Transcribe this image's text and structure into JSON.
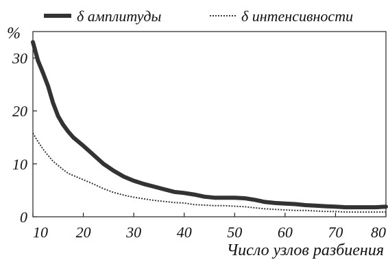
{
  "chart_data": {
    "type": "line",
    "title": "",
    "xlabel": "Число узлов разбиения",
    "ylabel": "%",
    "xlim": [
      10,
      80
    ],
    "ylim": [
      0,
      35
    ],
    "xticks": [
      10,
      20,
      30,
      40,
      50,
      60,
      70,
      80
    ],
    "yticks": [
      0,
      10,
      20,
      30
    ],
    "grid": false,
    "legend_position": "top",
    "series": [
      {
        "name": "δ амплитуды",
        "style": "thick-solid",
        "color": "#333333",
        "x": [
          10,
          11,
          12,
          13,
          14,
          15,
          16,
          17,
          18,
          20,
          22,
          24,
          26,
          28,
          30,
          32,
          34,
          36,
          38,
          40,
          42,
          44,
          46,
          48,
          50,
          52,
          54,
          56,
          58,
          60,
          62,
          64,
          66,
          68,
          70,
          72,
          74,
          76,
          78,
          80
        ],
        "values": [
          33,
          29.5,
          27.2,
          24.7,
          21.5,
          19.0,
          17.4,
          16.1,
          15.0,
          13.4,
          11.7,
          10.0,
          8.7,
          7.6,
          6.8,
          6.2,
          5.7,
          5.2,
          4.7,
          4.5,
          4.2,
          3.8,
          3.6,
          3.6,
          3.6,
          3.5,
          3.2,
          2.8,
          2.6,
          2.5,
          2.4,
          2.2,
          2.1,
          2.0,
          1.9,
          1.8,
          1.8,
          1.8,
          1.8,
          1.9
        ]
      },
      {
        "name": "δ интенсивности",
        "style": "dotted",
        "color": "#333333",
        "x": [
          10,
          11,
          12,
          13,
          14,
          15,
          16,
          17,
          18,
          20,
          22,
          24,
          26,
          28,
          30,
          32,
          34,
          36,
          38,
          40,
          42,
          44,
          46,
          48,
          50,
          52,
          54,
          56,
          58,
          60,
          62,
          64,
          66,
          68,
          70,
          72,
          74,
          76,
          78,
          80
        ],
        "values": [
          15.8,
          14.2,
          12.8,
          11.6,
          10.5,
          9.7,
          8.9,
          8.2,
          7.8,
          7.0,
          6.2,
          5.3,
          4.6,
          4.1,
          3.7,
          3.4,
          3.1,
          2.9,
          2.7,
          2.6,
          2.3,
          2.2,
          2.1,
          2.1,
          2.0,
          1.9,
          1.7,
          1.5,
          1.4,
          1.3,
          1.2,
          1.2,
          1.1,
          1.0,
          1.0,
          0.9,
          0.9,
          0.9,
          0.9,
          0.9
        ]
      }
    ]
  }
}
